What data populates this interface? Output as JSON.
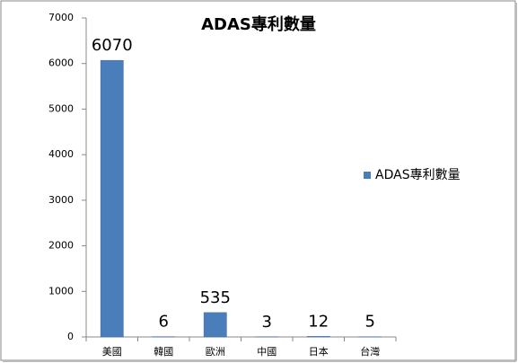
{
  "chart_data": {
    "type": "bar",
    "title": "ADAS專利數量",
    "categories": [
      "美國",
      "韓國",
      "歐洲",
      "中國",
      "日本",
      "台灣"
    ],
    "series": [
      {
        "name": "ADAS專利數量",
        "color": "#4a7ebb",
        "values": [
          6070,
          6,
          535,
          3,
          12,
          5
        ]
      }
    ],
    "ylim": [
      0,
      7000
    ],
    "yticks": [
      0,
      1000,
      2000,
      3000,
      4000,
      5000,
      6000,
      7000
    ],
    "legend": "right",
    "grid": false
  }
}
